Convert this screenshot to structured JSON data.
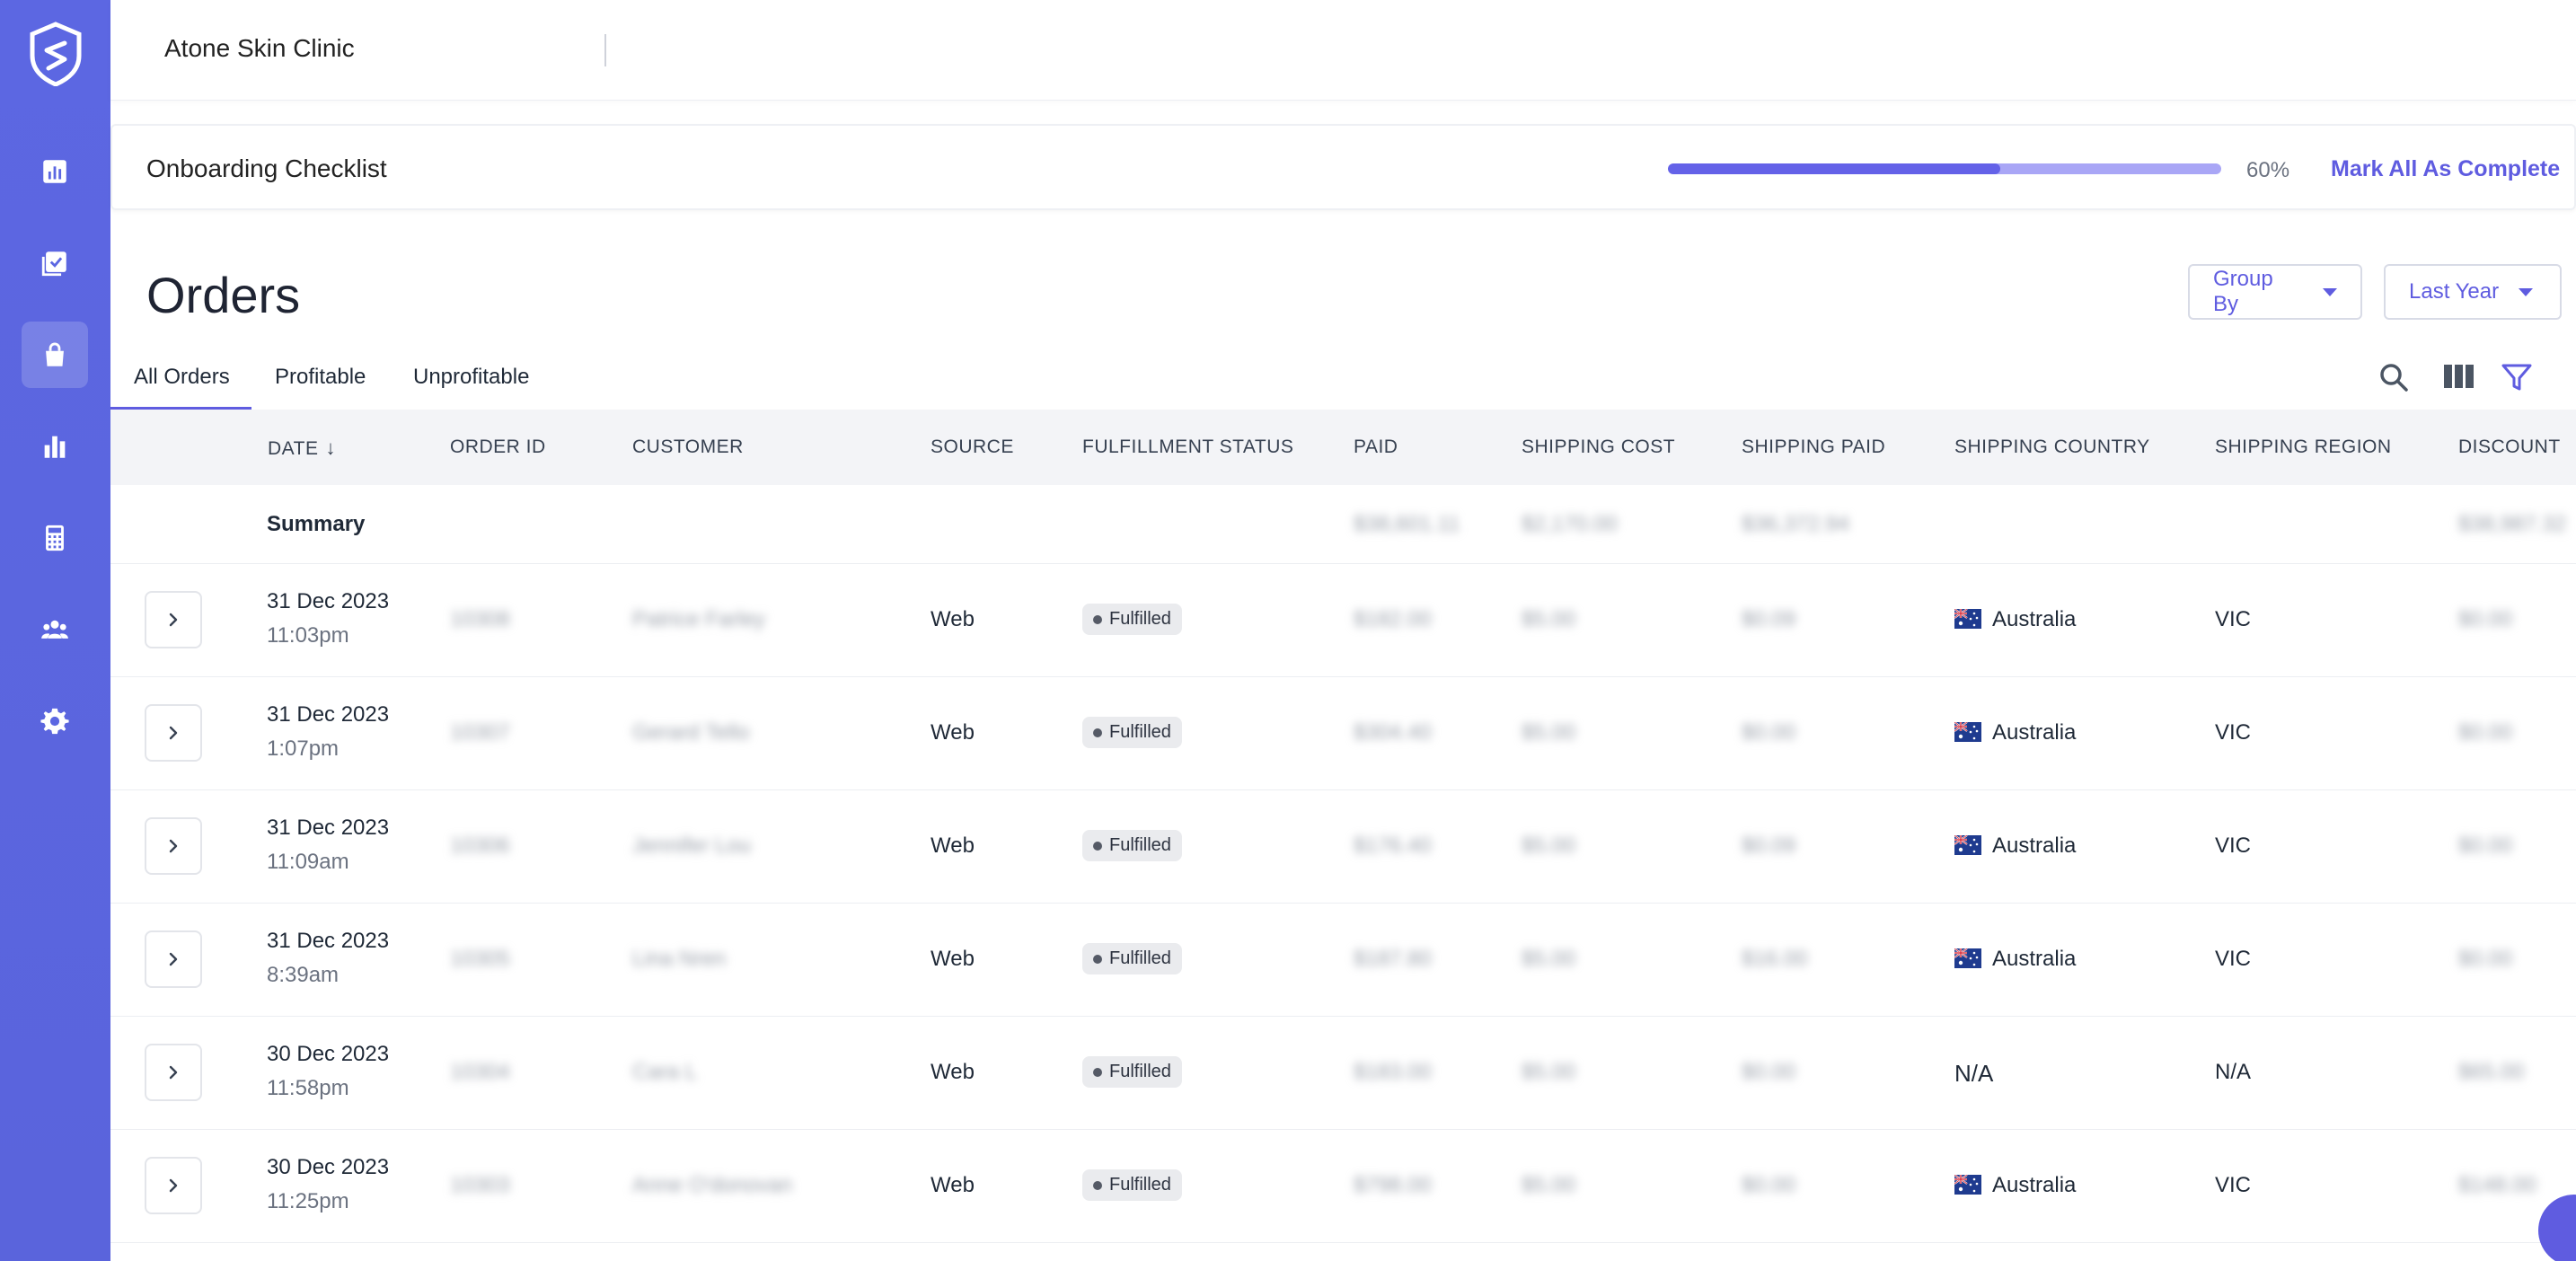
{
  "app": {
    "client_name": "Atone Skin Clinic"
  },
  "sidebar": {
    "items": [
      {
        "name": "dashboard",
        "icon": "chart-square-icon"
      },
      {
        "name": "checklist",
        "icon": "checklist-icon"
      },
      {
        "name": "orders",
        "icon": "shopping-bag-icon",
        "active": true
      },
      {
        "name": "reports",
        "icon": "bar-chart-icon"
      },
      {
        "name": "calculator",
        "icon": "calculator-icon"
      },
      {
        "name": "customers",
        "icon": "users-icon"
      },
      {
        "name": "settings",
        "icon": "gear-icon"
      }
    ]
  },
  "onboarding": {
    "title": "Onboarding Checklist",
    "progress_percent": 60,
    "progress_label": "60%",
    "action_label": "Mark All As Complete"
  },
  "orders": {
    "title": "Orders",
    "group_by_label": "Group By",
    "period_label": "Last Year",
    "tabs": [
      {
        "label": "All Orders",
        "active": true
      },
      {
        "label": "Profitable"
      },
      {
        "label": "Unprofitable"
      }
    ],
    "columns": [
      "DATE",
      "ORDER ID",
      "CUSTOMER",
      "SOURCE",
      "FULFILLMENT STATUS",
      "PAID",
      "SHIPPING COST",
      "SHIPPING PAID",
      "SHIPPING COUNTRY",
      "SHIPPING REGION",
      "DISCOUNT"
    ],
    "summary_label": "Summary",
    "summary": {
      "paid": "$38,601.11",
      "shipping_cost": "$2,170.00",
      "shipping_paid": "$36,372.94",
      "discount": "$38,987.32"
    },
    "rows": [
      {
        "date": "31 Dec 2023",
        "time": "11:03pm",
        "order_id": "10308",
        "customer": "Patrice Farley",
        "source": "Web",
        "status": "Fulfilled",
        "paid": "$182.00",
        "shipping_cost": "$5.00",
        "shipping_paid": "$0.09",
        "country": "Australia",
        "flag": true,
        "region": "VIC",
        "discount": "$0.00"
      },
      {
        "date": "31 Dec 2023",
        "time": "1:07pm",
        "order_id": "10307",
        "customer": "Gerard Tello",
        "source": "Web",
        "status": "Fulfilled",
        "paid": "$304.40",
        "shipping_cost": "$5.00",
        "shipping_paid": "$0.00",
        "country": "Australia",
        "flag": true,
        "region": "VIC",
        "discount": "$0.00"
      },
      {
        "date": "31 Dec 2023",
        "time": "11:09am",
        "order_id": "10306",
        "customer": "Jennifer Lou",
        "source": "Web",
        "status": "Fulfilled",
        "paid": "$176.40",
        "shipping_cost": "$5.00",
        "shipping_paid": "$0.09",
        "country": "Australia",
        "flag": true,
        "region": "VIC",
        "discount": "$0.00"
      },
      {
        "date": "31 Dec 2023",
        "time": "8:39am",
        "order_id": "10305",
        "customer": "Lina Nren",
        "source": "Web",
        "status": "Fulfilled",
        "paid": "$187.80",
        "shipping_cost": "$5.00",
        "shipping_paid": "$16.00",
        "country": "Australia",
        "flag": true,
        "region": "VIC",
        "discount": "$0.00"
      },
      {
        "date": "30 Dec 2023",
        "time": "11:58pm",
        "order_id": "10304",
        "customer": "Cara L",
        "source": "Web",
        "status": "Fulfilled",
        "paid": "$183.00",
        "shipping_cost": "$5.00",
        "shipping_paid": "$0.00",
        "country": "N/A",
        "flag": false,
        "region": "N/A",
        "discount": "$65.00"
      },
      {
        "date": "30 Dec 2023",
        "time": "11:25pm",
        "order_id": "10303",
        "customer": "Anne O'donovan",
        "source": "Web",
        "status": "Fulfilled",
        "paid": "$798.00",
        "shipping_cost": "$5.00",
        "shipping_paid": "$0.00",
        "country": "Australia",
        "flag": true,
        "region": "VIC",
        "discount": "$148.00"
      }
    ]
  },
  "colors": {
    "sidebar": "#5c67e2",
    "accent": "#5f5ce0",
    "progress_track": "#a9a6f6"
  }
}
